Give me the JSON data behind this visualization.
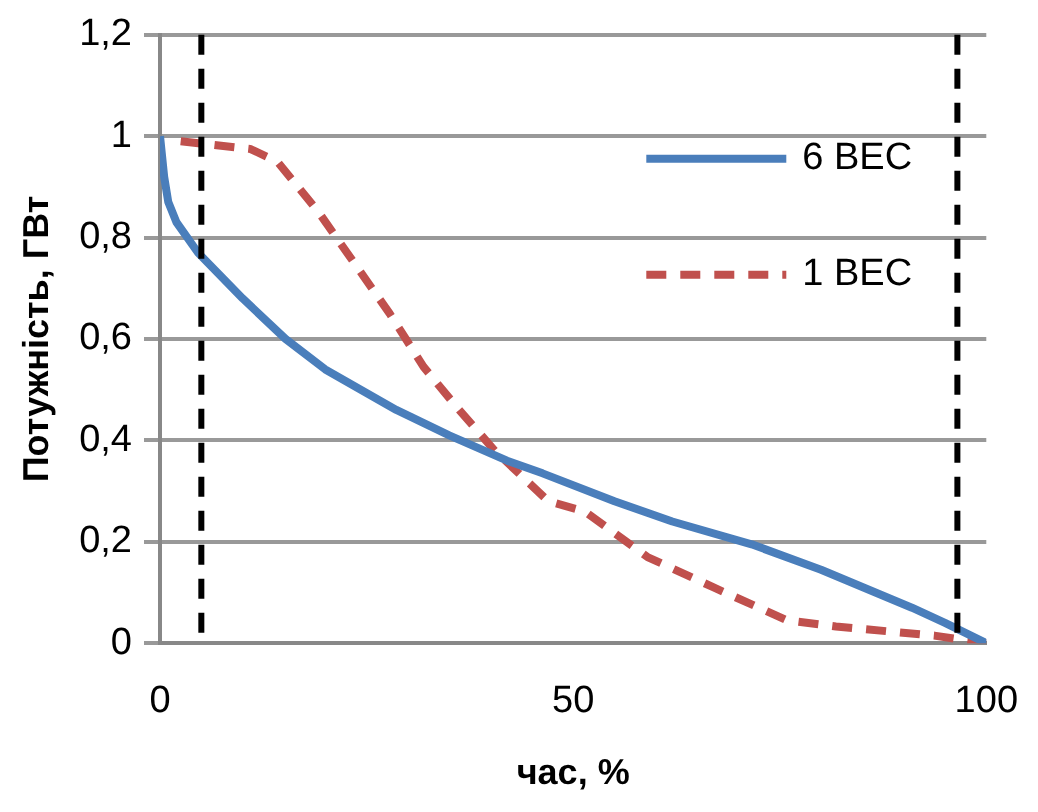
{
  "chart_data": {
    "type": "line",
    "xlabel": "час, %",
    "ylabel": "Потужність, ГВт",
    "xlim": [
      0,
      100
    ],
    "xticks": [
      0,
      50,
      100
    ],
    "ylim": [
      0,
      1.2
    ],
    "yticks": [
      0,
      {
        "value": 0.2,
        "label": "0,2"
      },
      {
        "value": 0.4,
        "label": "0,4"
      },
      {
        "value": 0.6,
        "label": "0,6"
      },
      {
        "value": 0.8,
        "label": "0,8"
      },
      1,
      {
        "value": 1.2,
        "label": "1,2"
      }
    ],
    "grid": "y",
    "legend": "top right",
    "marker": "none",
    "series": [
      {
        "name": "6 ВЕС",
        "color": "#4a7ebb",
        "line_style": "solid",
        "x": [
          0,
          0.5,
          1,
          2,
          4.6,
          10,
          15.2,
          20,
          28.6,
          35,
          42,
          46.3,
          55,
          62,
          71.6,
          80,
          91,
          95,
          100
        ],
        "values": [
          1.0,
          0.92,
          0.87,
          0.83,
          0.77,
          0.68,
          0.6,
          0.54,
          0.46,
          0.41,
          0.36,
          0.335,
          0.28,
          0.24,
          0.195,
          0.145,
          0.07,
          0.04,
          0
        ]
      },
      {
        "name": "1 ВЕС",
        "color": "#c0504d",
        "line_style": "dashed",
        "x": [
          2.5,
          10.9,
          14.2,
          19.2,
          23.5,
          27.8,
          31.9,
          36.2,
          40.5,
          47,
          51.4,
          59,
          67,
          75.9,
          81.8,
          93.7,
          100
        ],
        "values": [
          0.99,
          0.975,
          0.95,
          0.85,
          0.75,
          0.65,
          0.545,
          0.46,
          0.38,
          0.28,
          0.26,
          0.17,
          0.11,
          0.045,
          0.033,
          0.015,
          0
        ]
      }
    ],
    "ref_lines": [
      {
        "axis": "x",
        "value": 5,
        "color": "#000000",
        "line_style": "dashed"
      },
      {
        "axis": "x",
        "value": 96.5,
        "color": "#000000",
        "line_style": "dashed"
      }
    ]
  }
}
